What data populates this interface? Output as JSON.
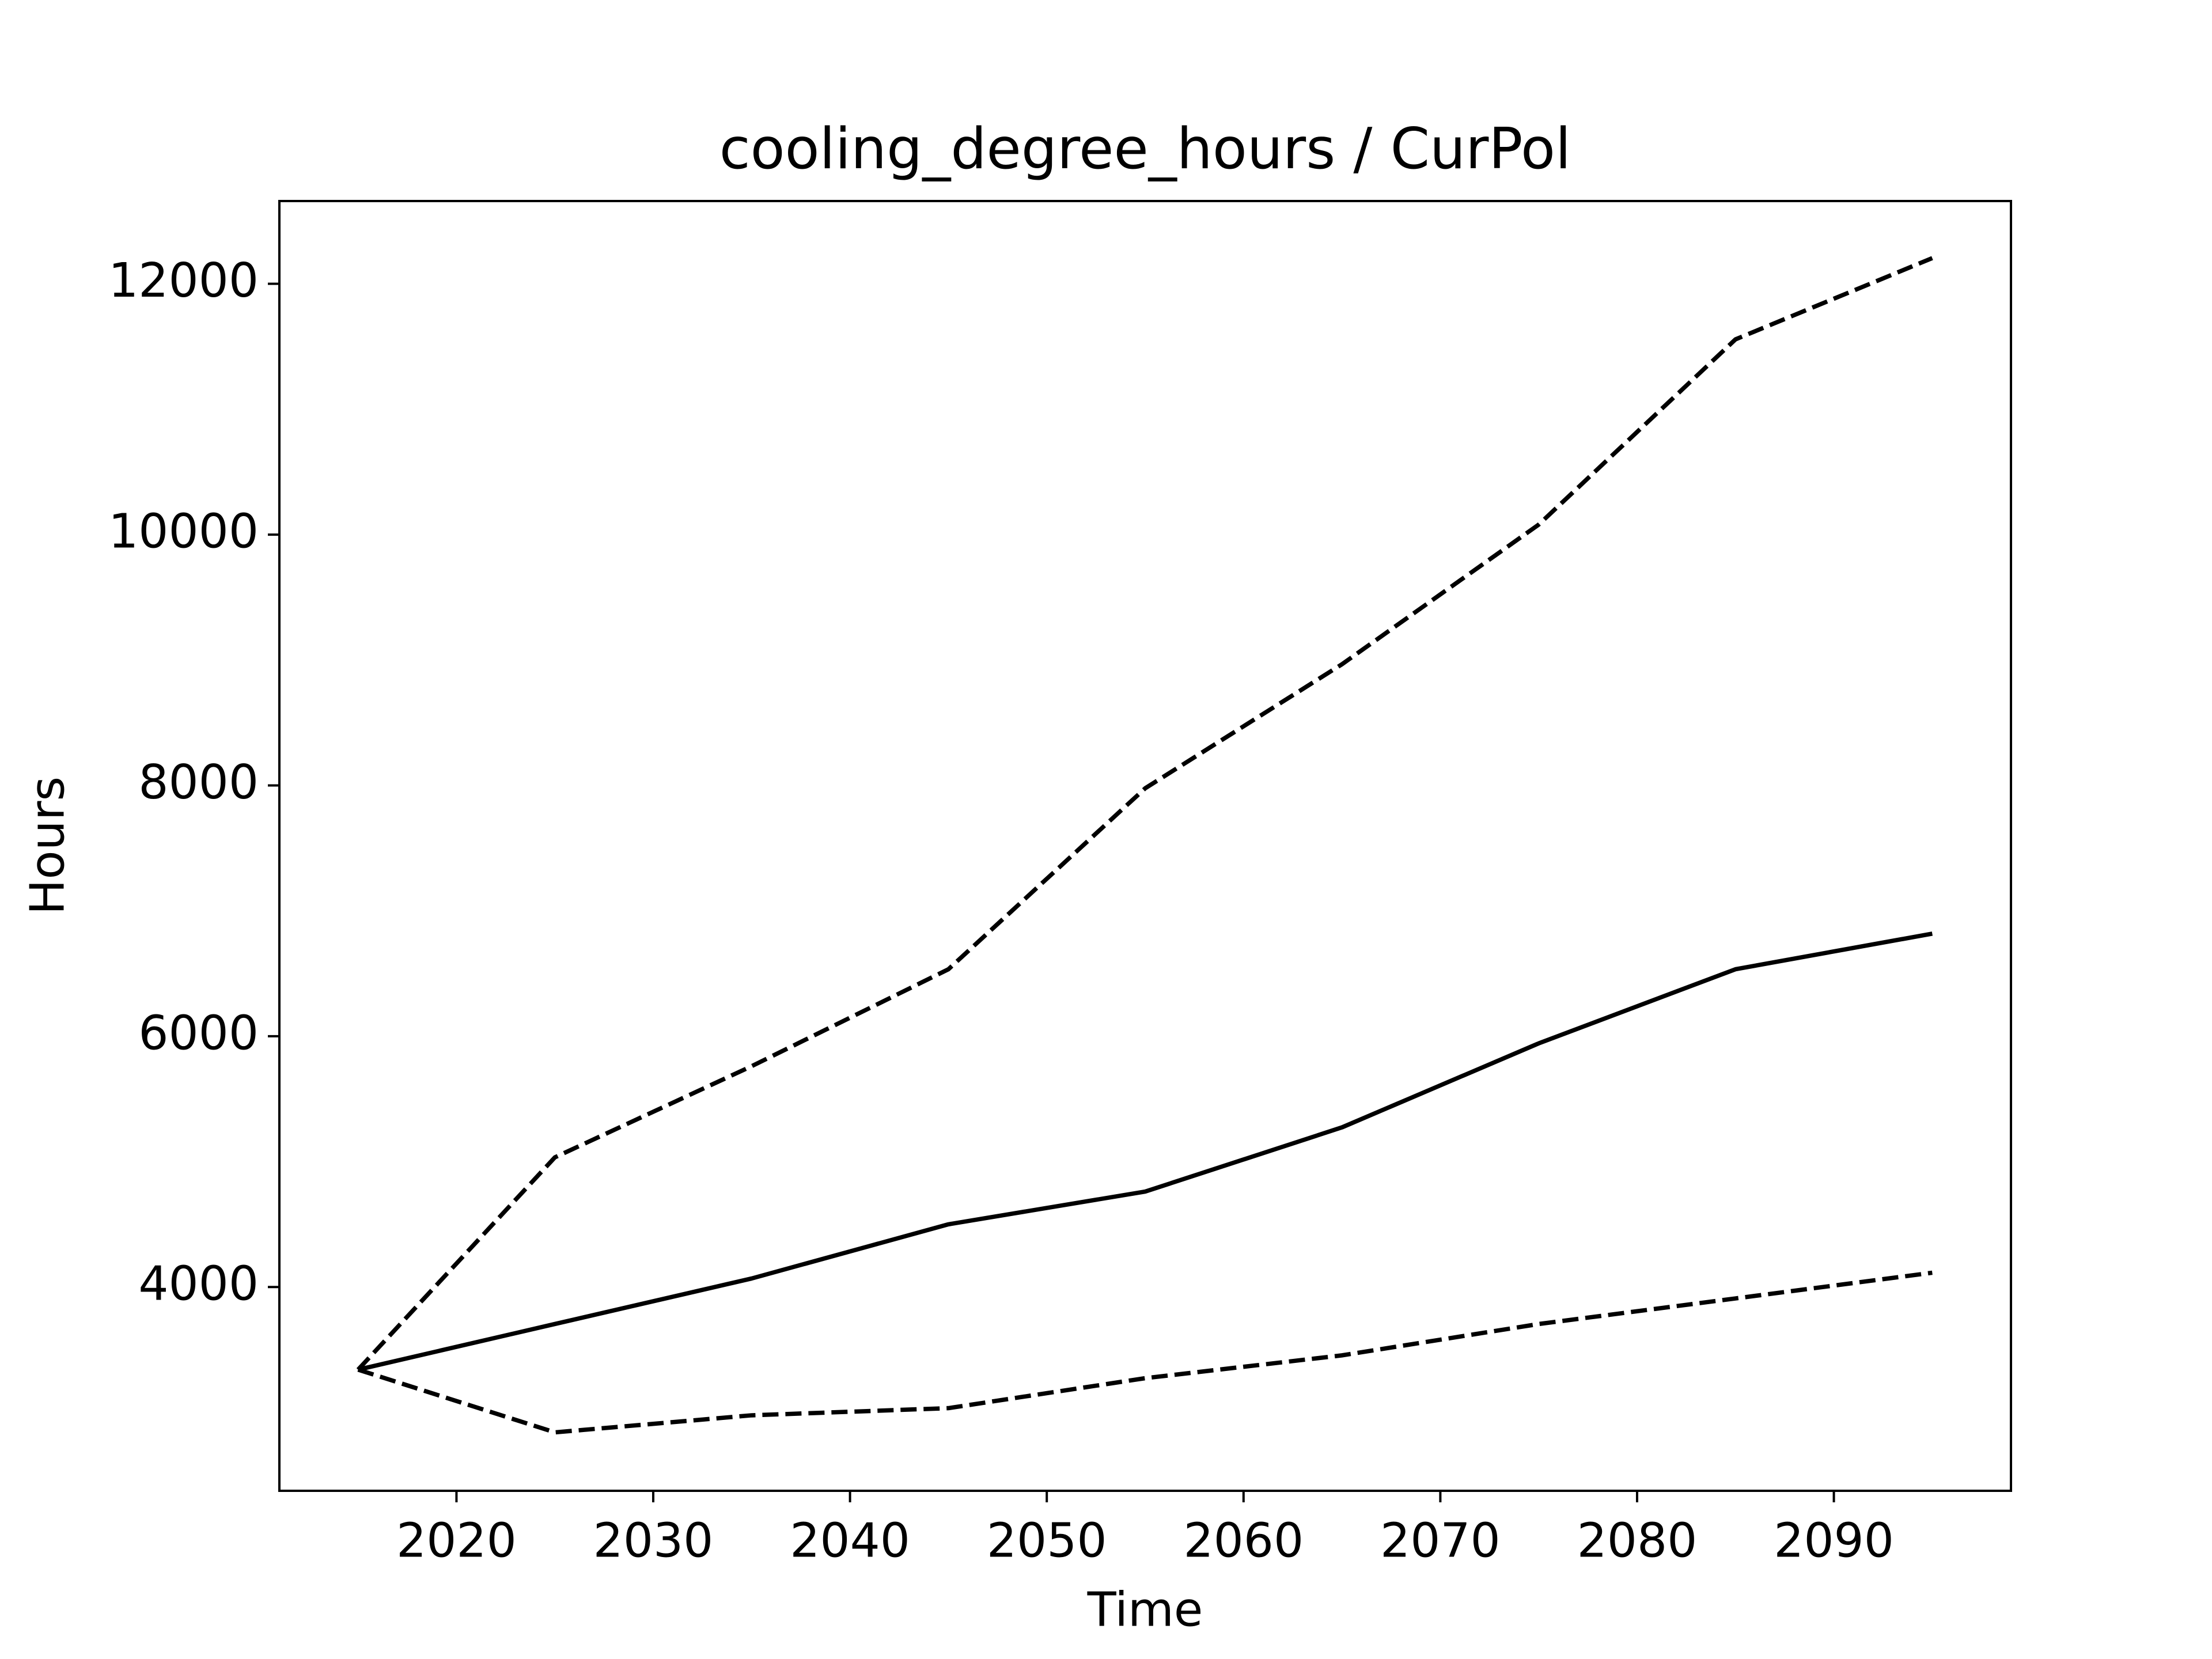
{
  "chart_data": {
    "type": "line",
    "title": "cooling_degree_hours / CurPol",
    "x_label": "Time",
    "y_label": "Hours",
    "x": [
      2015,
      2025,
      2035,
      2045,
      2055,
      2065,
      2075,
      2085,
      2095
    ],
    "series": [
      {
        "color": "#000000",
        "dash": "solid",
        "values": [
          3341,
          3705,
          4068,
          4500,
          4761,
          5273,
          5943,
          6534,
          6818
        ]
      },
      {
        "color": "#000000",
        "dash": "dashed",
        "values": [
          3341,
          5034,
          5761,
          6534,
          7977,
          8966,
          10080,
          11557,
          12205
        ]
      },
      {
        "color": "#000000",
        "dash": "dashed",
        "values": [
          3341,
          2841,
          2977,
          3034,
          3273,
          3455,
          3705,
          3909,
          4114
        ]
      }
    ],
    "xlim": [
      2011,
      2099
    ],
    "xticks": [
      2020,
      2030,
      2040,
      2050,
      2060,
      2070,
      2080,
      2090
    ],
    "ylim": [
      2375,
      12660
    ],
    "yticks": [
      4000,
      6000,
      8000,
      10000,
      12000
    ],
    "grid": false
  }
}
